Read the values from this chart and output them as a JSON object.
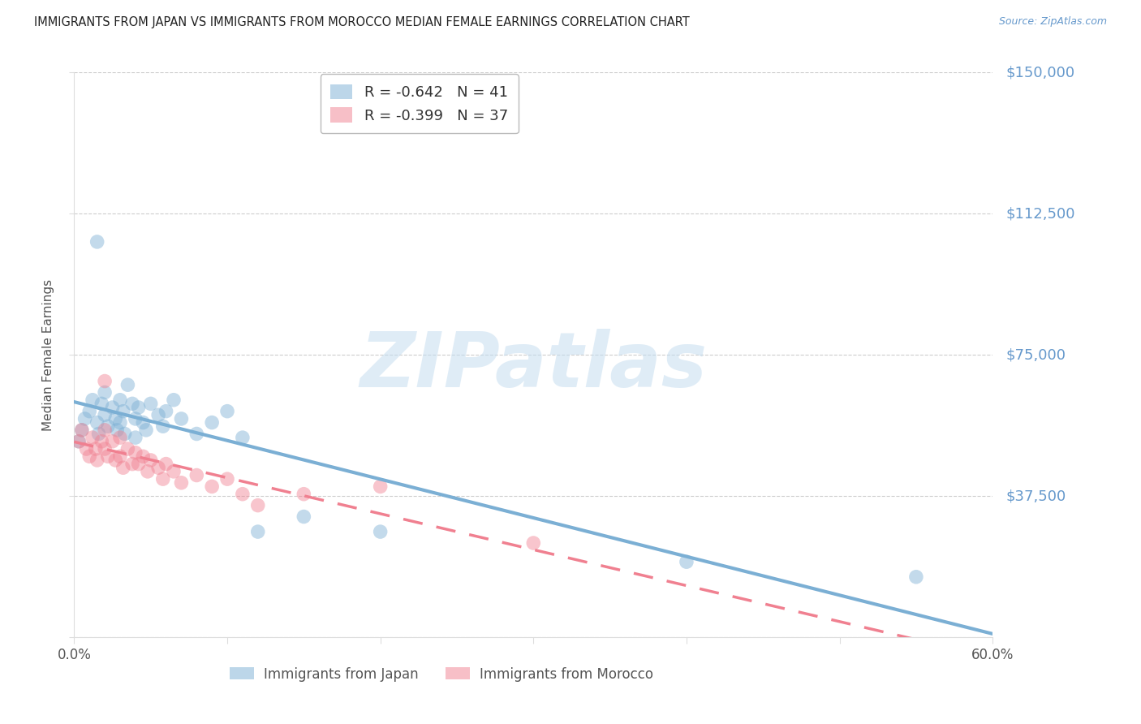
{
  "title": "IMMIGRANTS FROM JAPAN VS IMMIGRANTS FROM MOROCCO MEDIAN FEMALE EARNINGS CORRELATION CHART",
  "source": "Source: ZipAtlas.com",
  "ylabel": "Median Female Earnings",
  "xlim": [
    0.0,
    0.6
  ],
  "ylim": [
    0,
    150000
  ],
  "ytick_vals": [
    0,
    37500,
    75000,
    112500,
    150000
  ],
  "ytick_labels": [
    "",
    "$37,500",
    "$75,000",
    "$112,500",
    "$150,000"
  ],
  "xtick_vals": [
    0.0,
    0.1,
    0.2,
    0.3,
    0.4,
    0.5,
    0.6
  ],
  "xtick_edge_labels": [
    "0.0%",
    "60.0%"
  ],
  "japan_color": "#7bafd4",
  "morocco_color": "#f08090",
  "japan_R": -0.642,
  "japan_N": 41,
  "morocco_R": -0.399,
  "morocco_N": 37,
  "japan_label": "Immigrants from Japan",
  "morocco_label": "Immigrants from Morocco",
  "watermark_text": "ZIPatlas",
  "background_color": "#ffffff",
  "grid_color": "#c8c8c8",
  "ytick_color": "#6699cc",
  "title_color": "#222222",
  "source_color": "#6699cc",
  "japan_x": [
    0.003,
    0.005,
    0.007,
    0.01,
    0.012,
    0.015,
    0.016,
    0.018,
    0.02,
    0.02,
    0.022,
    0.025,
    0.027,
    0.028,
    0.03,
    0.03,
    0.032,
    0.033,
    0.035,
    0.038,
    0.04,
    0.04,
    0.042,
    0.045,
    0.047,
    0.05,
    0.055,
    0.058,
    0.06,
    0.065,
    0.07,
    0.08,
    0.09,
    0.1,
    0.11,
    0.12,
    0.15,
    0.2,
    0.4,
    0.55,
    0.015
  ],
  "japan_y": [
    52000,
    55000,
    58000,
    60000,
    63000,
    57000,
    54000,
    62000,
    65000,
    59000,
    56000,
    61000,
    58000,
    55000,
    63000,
    57000,
    60000,
    54000,
    67000,
    62000,
    58000,
    53000,
    61000,
    57000,
    55000,
    62000,
    59000,
    56000,
    60000,
    63000,
    58000,
    54000,
    57000,
    60000,
    53000,
    28000,
    32000,
    28000,
    20000,
    16000,
    105000
  ],
  "morocco_x": [
    0.003,
    0.005,
    0.008,
    0.01,
    0.012,
    0.014,
    0.015,
    0.018,
    0.02,
    0.02,
    0.022,
    0.025,
    0.027,
    0.03,
    0.03,
    0.032,
    0.035,
    0.038,
    0.04,
    0.042,
    0.045,
    0.048,
    0.05,
    0.055,
    0.058,
    0.06,
    0.065,
    0.07,
    0.08,
    0.09,
    0.1,
    0.11,
    0.12,
    0.15,
    0.2,
    0.3,
    0.02
  ],
  "morocco_y": [
    52000,
    55000,
    50000,
    48000,
    53000,
    50000,
    47000,
    52000,
    55000,
    50000,
    48000,
    52000,
    47000,
    53000,
    48000,
    45000,
    50000,
    46000,
    49000,
    46000,
    48000,
    44000,
    47000,
    45000,
    42000,
    46000,
    44000,
    41000,
    43000,
    40000,
    42000,
    38000,
    35000,
    38000,
    40000,
    25000,
    68000
  ]
}
